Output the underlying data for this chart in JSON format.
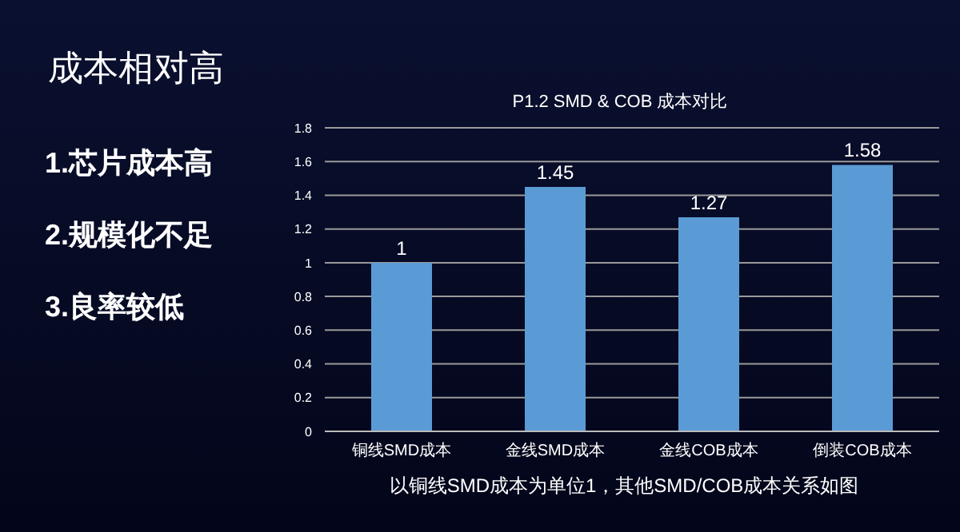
{
  "chart_data": {
    "type": "bar",
    "title": "P1.2 SMD & COB 成本对比",
    "categories": [
      "铜线SMD成本",
      "金线SMD成本",
      "金线COB成本",
      "倒装COB成本"
    ],
    "values": [
      1,
      1.45,
      1.27,
      1.58
    ],
    "color": "#5b9bd5",
    "ylim": [
      0,
      1.8
    ],
    "yticks": [
      0,
      0.2,
      0.4,
      0.6,
      0.8,
      1,
      1.2,
      1.4,
      1.6,
      1.8
    ],
    "grid": "y",
    "data_labels": true,
    "annotations": [
      "成本相对高",
      "1.芯片成本高",
      "2.规模化不足",
      "3.良率较低",
      "以铜线SMD成本为单位1，其他SMD/COB成本关系如图"
    ]
  }
}
